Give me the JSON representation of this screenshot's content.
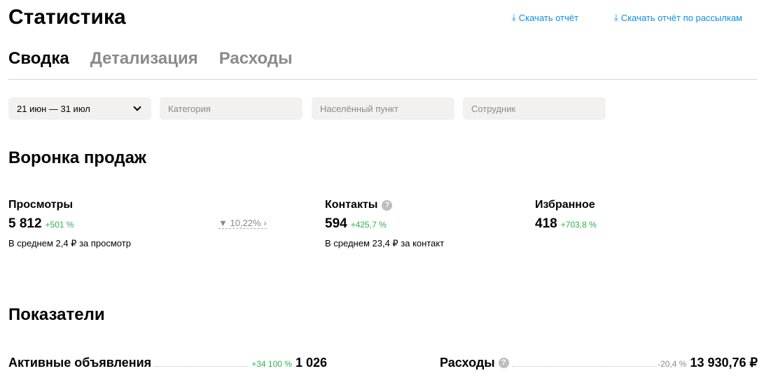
{
  "header": {
    "title": "Статистика",
    "download_report": "Скачать отчёт",
    "download_mailing_report": "Скачать отчёт по рассылкам"
  },
  "tabs": [
    {
      "label": "Сводка",
      "active": true
    },
    {
      "label": "Детализация"
    },
    {
      "label": "Расходы"
    }
  ],
  "filters": {
    "period": "21 июн — 31 июл",
    "category": "Категория",
    "city": "Населённый пункт",
    "employee": "Сотрудник"
  },
  "funnel": {
    "title": "Воронка продаж",
    "views": {
      "label": "Просмотры",
      "value": "5 812",
      "change": "+501 %",
      "avg": "В среднем 2,4 ₽ за просмотр"
    },
    "conversion": "10,22%",
    "contacts": {
      "label": "Контакты",
      "value": "594",
      "change": "+425,7 %",
      "avg": "В среднем 23,4 ₽ за контакт"
    },
    "favorites": {
      "label": "Избранное",
      "value": "418",
      "change": "+703,8 %"
    }
  },
  "metrics": {
    "title": "Показатели",
    "active_ads": {
      "label": "Активные объявления",
      "change": "+34 100 %",
      "value": "1 026"
    },
    "expenses": {
      "label": "Расходы",
      "change": "-20,4 %",
      "value": "13 930,76 ₽"
    }
  },
  "colors": {
    "link": "#0a8fe8",
    "positive": "#2bb34d"
  }
}
